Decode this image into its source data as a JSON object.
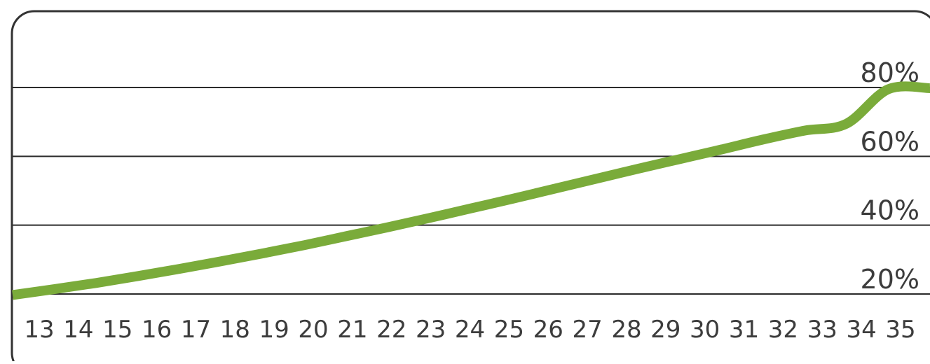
{
  "chart_data": {
    "type": "line",
    "x": [
      "13",
      "14",
      "15",
      "16",
      "17",
      "18",
      "19",
      "20",
      "21",
      "22",
      "23",
      "24",
      "25",
      "26",
      "27",
      "28",
      "29",
      "30",
      "31",
      "32",
      "33",
      "34",
      "35"
    ],
    "y_ticks": [
      "20%",
      "40%",
      "60%",
      "80%"
    ],
    "y_tick_values": [
      20,
      40,
      60,
      80
    ],
    "ylim": [
      20,
      80
    ],
    "series": [
      {
        "values": [
          19.7,
          21.4,
          23.2,
          25.2,
          27.3,
          29.5,
          31.8,
          34.2,
          36.8,
          39.4,
          42.1,
          44.9,
          47.7,
          50.6,
          53.5,
          56.4,
          59.2,
          62.0,
          64.9,
          67.5,
          69.5,
          79.5,
          79.8
        ]
      }
    ],
    "line_color": "#7aab3a",
    "grid_color": "#2b2b2b",
    "border_color": "#333333",
    "tick_color": "#3c3c3c",
    "grid": true,
    "legend": "none"
  }
}
